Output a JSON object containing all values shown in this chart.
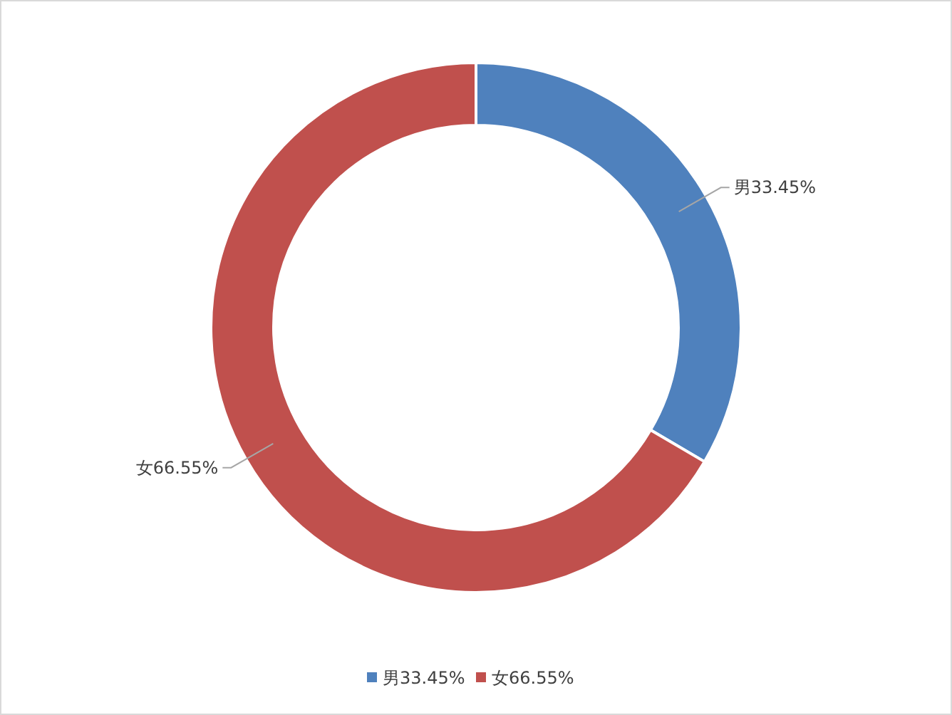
{
  "chart_data": {
    "type": "donut",
    "categories": [
      "男33.45%",
      "女66.55%"
    ],
    "values": [
      33.45,
      66.55
    ],
    "colors": [
      "#4f81bd",
      "#c0504d"
    ],
    "value_labels": [
      "男33.45%",
      "女66.55%"
    ],
    "legend": "bottom"
  }
}
